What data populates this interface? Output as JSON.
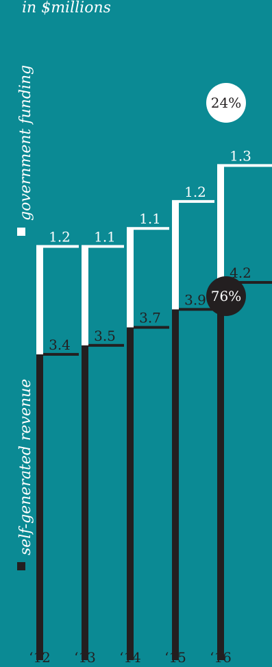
{
  "colors": {
    "background": "#0b8a94",
    "government": "#ffffff",
    "self_generated": "#231f20",
    "label": "#231f20"
  },
  "chart_data": {
    "type": "bar",
    "stacked": true,
    "unit_note": "in $millions",
    "categories": [
      "‘12",
      "‘13",
      "‘14",
      "‘15",
      "‘16"
    ],
    "series": [
      {
        "name": "self-generated revenue",
        "values": [
          3.4,
          3.5,
          3.7,
          3.9,
          4.2
        ]
      },
      {
        "name": "government funding",
        "values": [
          1.2,
          1.1,
          1.1,
          1.2,
          1.3
        ]
      }
    ],
    "share_labels": {
      "government": "24%",
      "self_generated": "76%"
    },
    "legend": "left, vertical"
  }
}
